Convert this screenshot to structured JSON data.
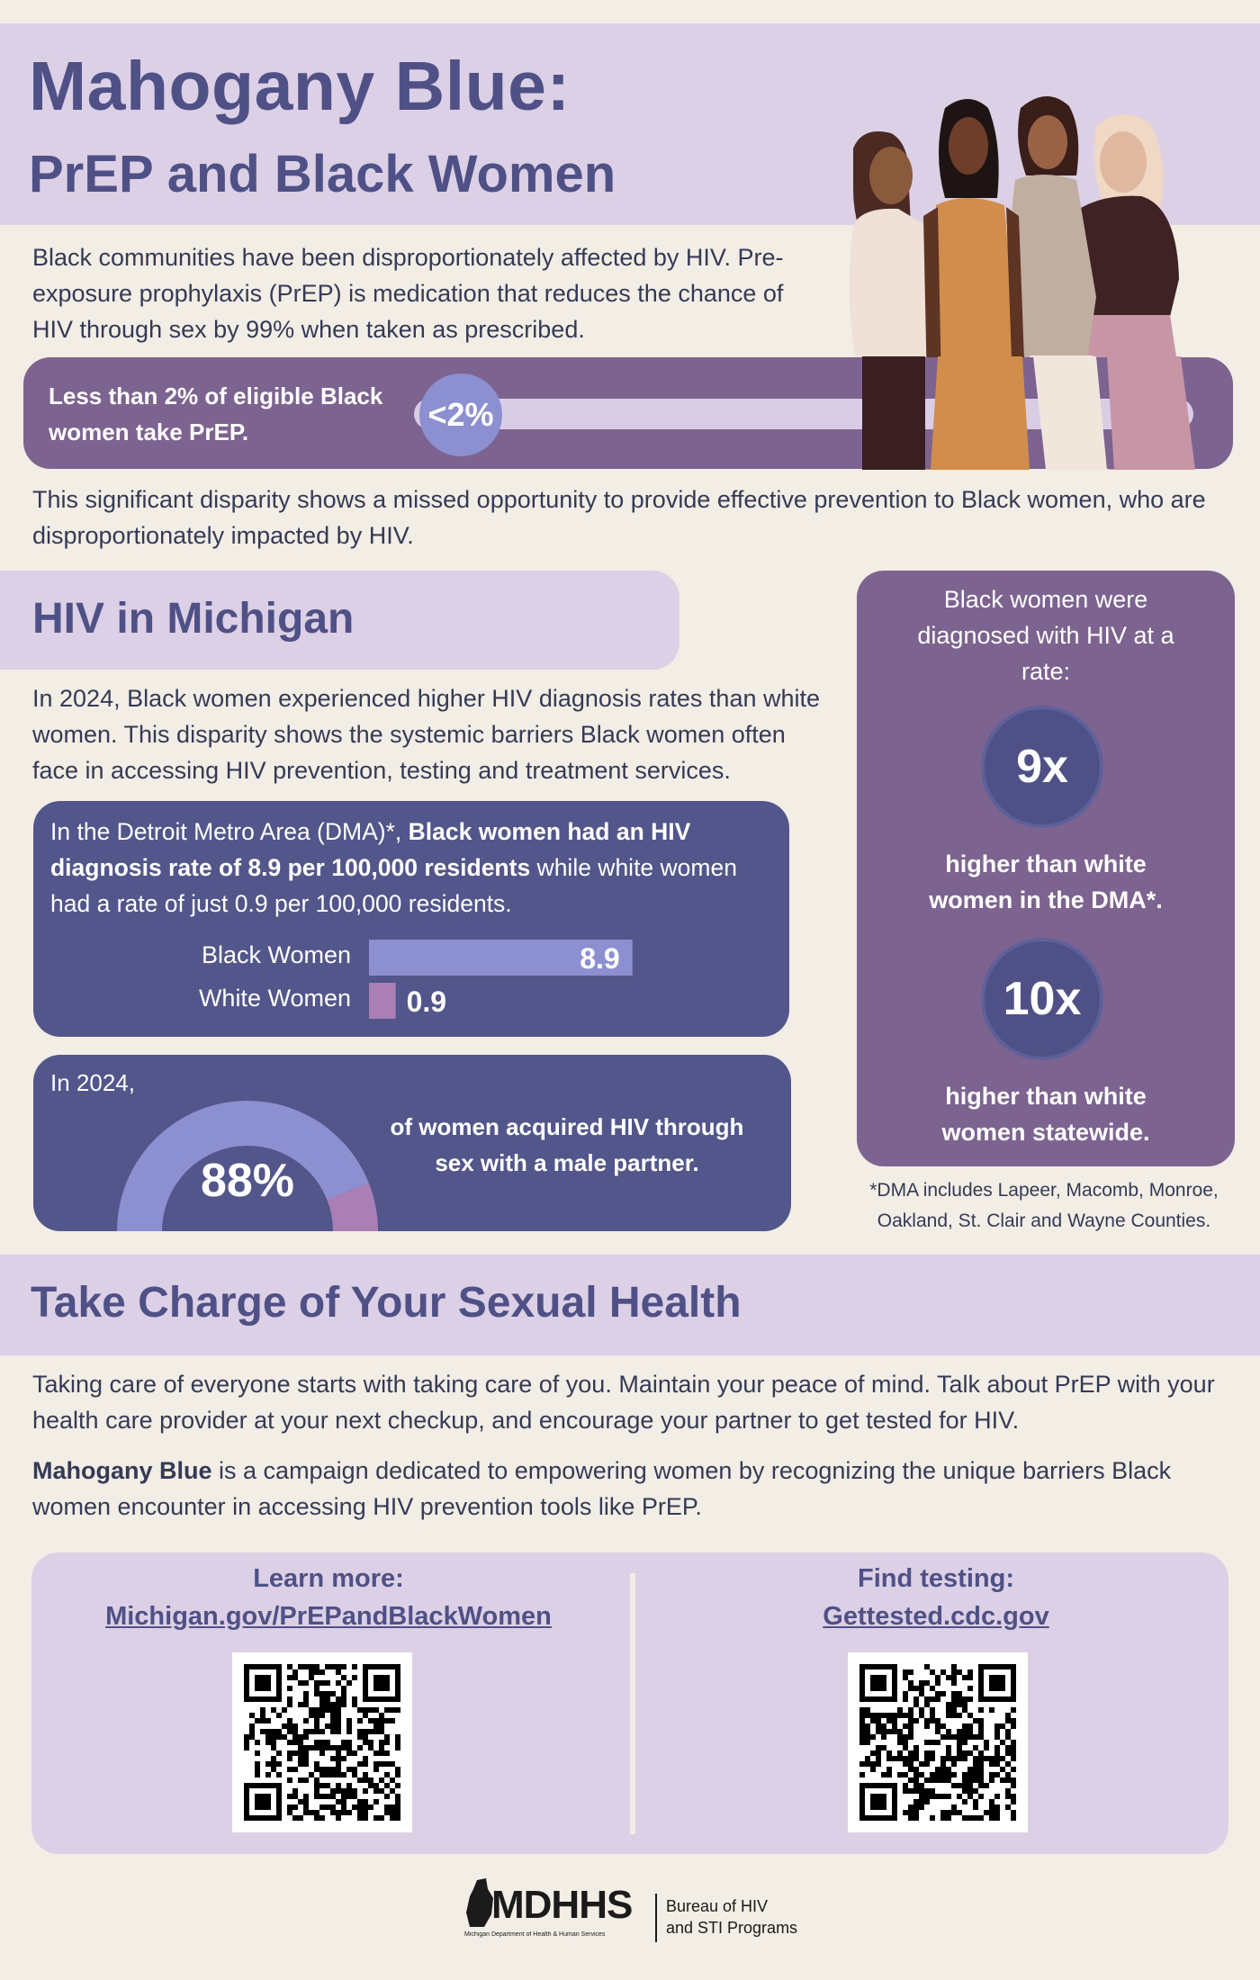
{
  "header": {
    "title_line1": "Mahogany Blue:",
    "title_line2": "PrEP and Black Women"
  },
  "intro": {
    "text": "Black communities have been disproportionately affected by HIV. Pre-exposure prophylaxis (PrEP) is medication that reduces the chance of HIV through sex by 99% when taken as prescribed."
  },
  "stat_pill": {
    "text": "Less than 2% of eligible Black women take PrEP.",
    "value": "<2%",
    "fill_fraction": 0.02
  },
  "disparity": {
    "text": "This significant disparity shows a missed opportunity to provide effective prevention to Black women, who are disproportionately impacted by HIV."
  },
  "michigan": {
    "title": "HIV in Michigan",
    "body": "In 2024, Black women experienced higher HIV diagnosis rates than white women. This disparity shows the systemic barriers Black women often face in accessing HIV prevention, testing and treatment services.",
    "dma_text_a": "In the Detroit Metro Area (DMA)*, ",
    "dma_text_bold": "Black women had an HIV diagnosis rate of 8.9 per 100,000 residents",
    "dma_text_b": " while white women had a rate of just 0.9 per 100,000 residents.",
    "gauge_prefix": "In 2024,",
    "gauge_value": "88%",
    "gauge_text": "of women acquired HIV through sex with a male partner."
  },
  "chart_data": [
    {
      "type": "bar",
      "categories": [
        "Black Women",
        "White Women"
      ],
      "values": [
        8.9,
        0.9
      ],
      "labels": [
        "8.9",
        "0.9"
      ],
      "colors": [
        "#8c8fd0",
        "#a97fb4"
      ]
    },
    {
      "type": "pie",
      "values": [
        88,
        12
      ],
      "labels": [
        "88%",
        ""
      ],
      "colors": [
        "#8c8fd0",
        "#a97fb4"
      ]
    }
  ],
  "side": {
    "intro": "Black women were diagnosed with HIV at a rate:",
    "stat1_value": "9x",
    "stat1_text": "higher than white women in the DMA*.",
    "stat2_value": "10x",
    "stat2_text": "higher than white women statewide.",
    "footnote": "*DMA includes Lapeer, Macomb, Monroe, Oakland, St. Clair and Wayne Counties."
  },
  "sexual_health": {
    "title": "Take Charge of Your Sexual Health",
    "para1": "Taking care of everyone starts with taking care of you. Maintain your peace of mind. Talk about PrEP with your health care provider at your next checkup, and encourage your partner to get tested for HIV.",
    "para2_bold": "Mahogany Blue",
    "para2_rest": " is a campaign dedicated to empowering women by recognizing the unique barriers Black women encounter in accessing HIV prevention tools like PrEP."
  },
  "links": {
    "learn_heading": "Learn more:",
    "learn_url": "Michigan.gov/PrEPandBlackWomen",
    "test_heading": "Find testing:",
    "test_url": "Gettested.cdc.gov"
  },
  "footer": {
    "logo_text": "MDHHS",
    "logo_small": "Michigan Department of Health & Human Services",
    "bureau_line1": "Bureau of HIV",
    "bureau_line2": "and STI Programs"
  }
}
